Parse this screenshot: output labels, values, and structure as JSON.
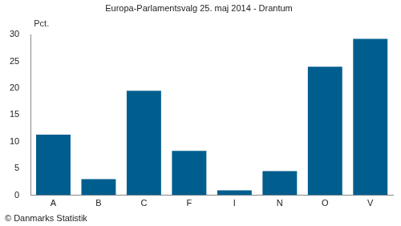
{
  "chart_data": {
    "type": "bar",
    "title": "Europa-Parlamentsvalg 25. maj 2014 - Drantum",
    "ylabel": "Pct.",
    "source": "© Danmarks Statistik",
    "categories": [
      "A",
      "B",
      "C",
      "F",
      "I",
      "N",
      "O",
      "V"
    ],
    "values": [
      11.3,
      3.0,
      19.5,
      8.3,
      0.9,
      4.5,
      24.0,
      29.2
    ],
    "color": "#005e8e",
    "ylim": [
      0,
      30
    ],
    "yticks": [
      0,
      5,
      10,
      15,
      20,
      25,
      30
    ],
    "grid": false
  }
}
